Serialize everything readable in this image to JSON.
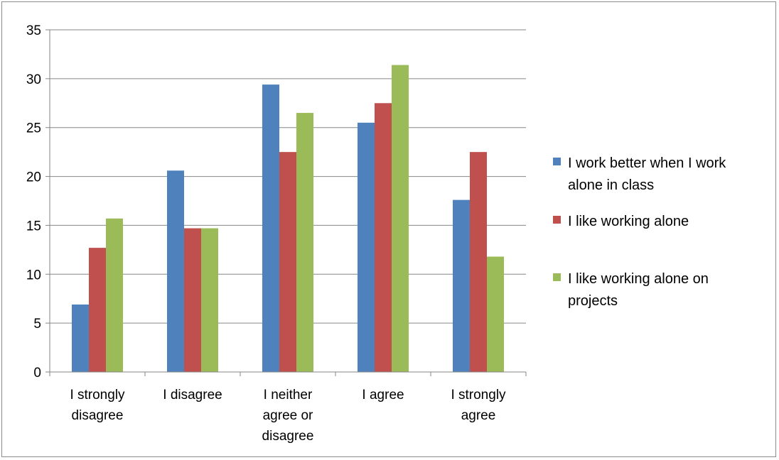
{
  "chart_data": {
    "type": "bar",
    "title": "",
    "xlabel": "",
    "ylabel": "",
    "categories": [
      [
        "I strongly",
        "disagree"
      ],
      [
        "I disagree"
      ],
      [
        "I neither",
        "agree or",
        "disagree"
      ],
      [
        "I agree"
      ],
      [
        "I strongly",
        "agree"
      ]
    ],
    "series": [
      {
        "name": "I work better when I work alone in class",
        "legend_lines": [
          "I work better when I work",
          "alone in class"
        ],
        "color": "#4F81BD",
        "values": [
          6.9,
          20.6,
          29.4,
          25.5,
          17.6
        ]
      },
      {
        "name": "I like working alone",
        "legend_lines": [
          "I like working alone"
        ],
        "color": "#C0504D",
        "values": [
          12.7,
          14.7,
          22.5,
          27.5,
          22.5
        ]
      },
      {
        "name": "I like working alone on projects",
        "legend_lines": [
          "I like working alone on",
          "projects"
        ],
        "color": "#9BBB59",
        "values": [
          15.7,
          14.7,
          26.5,
          31.4,
          11.8
        ]
      }
    ],
    "ylim": [
      0,
      35
    ],
    "yticks": [
      "0",
      "5",
      "10",
      "15",
      "20",
      "25",
      "30",
      "35"
    ],
    "grid": true,
    "legend_position": "right"
  }
}
